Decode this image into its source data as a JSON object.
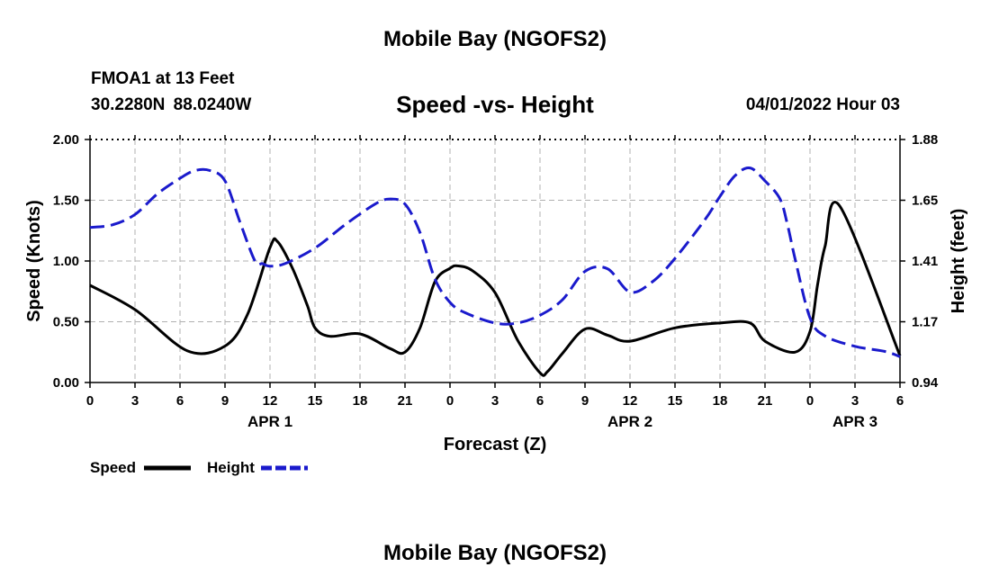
{
  "header": {
    "title": "Mobile Bay (NGOFS2)",
    "station": "FMOA1 at 13 Feet",
    "coordinates": "30.2280N  88.0240W",
    "subtitle": "Speed -vs- Height",
    "datetime": "04/01/2022 Hour 03"
  },
  "footer": {
    "title": "Mobile Bay (NGOFS2)"
  },
  "chart_data": {
    "type": "line",
    "xlabel": "Forecast (Z)",
    "x_unit": "hours from 00Z Apr 1",
    "xlim": [
      0,
      54
    ],
    "x_ticks": [
      0,
      3,
      6,
      9,
      12,
      15,
      18,
      21,
      24,
      27,
      30,
      33,
      36,
      39,
      42,
      45,
      48,
      51,
      54
    ],
    "x_tick_labels": [
      "0",
      "3",
      "6",
      "9",
      "12",
      "15",
      "18",
      "21",
      "0",
      "3",
      "6",
      "9",
      "12",
      "15",
      "18",
      "21",
      "0",
      "3",
      "6"
    ],
    "date_labels": [
      {
        "x": 12,
        "label": "APR 1"
      },
      {
        "x": 36,
        "label": "APR 2"
      },
      {
        "x": 51,
        "label": "APR 3"
      }
    ],
    "ylabel_left": "Speed (Knots)",
    "ylim_left": [
      0,
      2.0
    ],
    "y_ticks_left": [
      "0.00",
      "0.50",
      "1.00",
      "1.50",
      "2.00"
    ],
    "ylabel_right": "Height (feet)",
    "ylim_right": [
      0.94,
      1.88
    ],
    "y_ticks_right": [
      "0.94",
      "1.17",
      "1.41",
      "1.65",
      "1.88"
    ],
    "grid": true,
    "legend_position": "bottom-left",
    "series": [
      {
        "name": "Speed",
        "axis": "left",
        "color": "#000000",
        "dashed": false,
        "x": [
          0,
          3,
          6.5,
          9,
          10.5,
          12,
          12.5,
          13.5,
          14.5,
          15,
          16,
          18,
          20,
          21,
          22,
          23,
          24,
          24.5,
          25.5,
          27,
          28.5,
          30,
          30.5,
          31.5,
          33,
          34.5,
          36,
          39,
          42,
          44,
          45,
          47,
          48,
          48.5,
          49,
          50,
          54
        ],
        "values": [
          0.8,
          0.6,
          0.26,
          0.3,
          0.56,
          1.11,
          1.16,
          0.94,
          0.63,
          0.45,
          0.38,
          0.4,
          0.28,
          0.25,
          0.45,
          0.83,
          0.94,
          0.96,
          0.92,
          0.74,
          0.35,
          0.08,
          0.09,
          0.24,
          0.44,
          0.39,
          0.34,
          0.45,
          0.49,
          0.49,
          0.34,
          0.25,
          0.42,
          0.8,
          1.12,
          1.45,
          0.22
        ]
      },
      {
        "name": "Height",
        "axis": "right",
        "color": "#1a1acc",
        "dashed": true,
        "x": [
          0,
          1.5,
          3,
          4.5,
          6,
          7,
          8,
          9,
          10,
          11,
          11.5,
          12,
          13,
          15,
          17,
          19,
          20,
          21,
          22,
          23,
          24,
          25,
          27,
          28.5,
          30,
          31.5,
          33,
          34.5,
          36,
          37.5,
          39,
          41,
          42,
          43,
          44,
          45,
          46,
          46.5,
          47,
          48,
          49,
          51,
          53,
          54
        ],
        "values": [
          1.54,
          1.55,
          1.59,
          1.67,
          1.73,
          1.76,
          1.76,
          1.72,
          1.56,
          1.41,
          1.4,
          1.39,
          1.4,
          1.46,
          1.55,
          1.63,
          1.65,
          1.63,
          1.52,
          1.34,
          1.25,
          1.21,
          1.17,
          1.17,
          1.2,
          1.26,
          1.37,
          1.38,
          1.29,
          1.33,
          1.42,
          1.57,
          1.66,
          1.74,
          1.77,
          1.72,
          1.65,
          1.55,
          1.42,
          1.19,
          1.12,
          1.08,
          1.06,
          1.04
        ]
      }
    ]
  },
  "legend": {
    "items": [
      {
        "label": "Speed",
        "color": "#000000",
        "dashed": false
      },
      {
        "label": "Height",
        "color": "#1a1acc",
        "dashed": true
      }
    ]
  }
}
